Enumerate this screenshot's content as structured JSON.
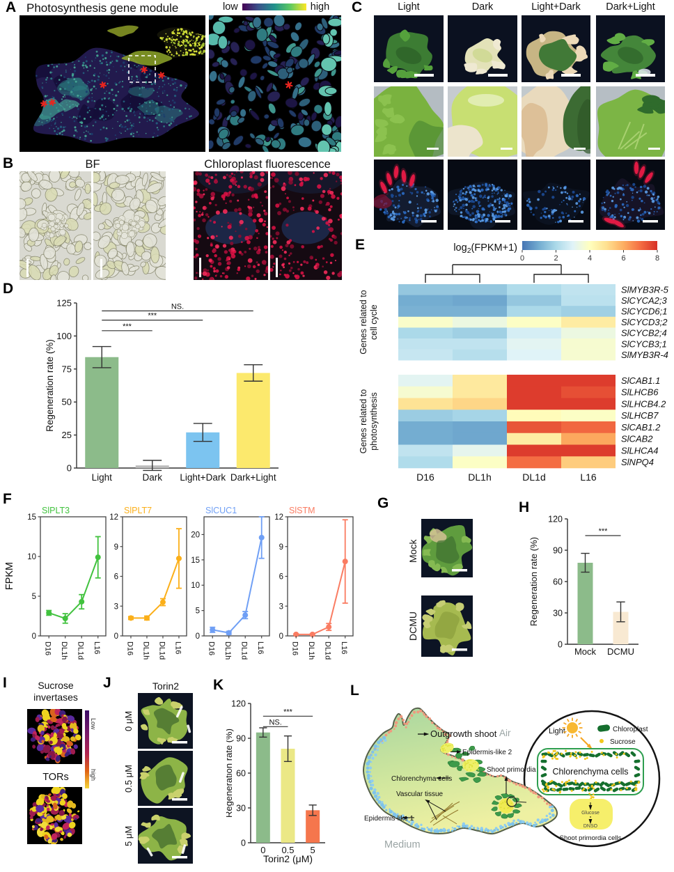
{
  "figure": {
    "panelA": {
      "letter": "A",
      "title": "Photosynthesis gene module",
      "colorbar_low": "low",
      "colorbar_high": "high"
    },
    "panelB": {
      "letter": "B",
      "bf_title": "BF",
      "fluor_title": "Chloroplast fluorescence"
    },
    "panelC": {
      "letter": "C",
      "columns": [
        "Light",
        "Dark",
        "Light+Dark",
        "Dark+Light"
      ]
    },
    "panelD": {
      "letter": "D"
    },
    "panelE": {
      "letter": "E"
    },
    "panelF": {
      "letter": "F",
      "ylabel": "FPKM"
    },
    "panelG": {
      "letter": "G",
      "rows": [
        "Mock",
        "DCMU"
      ]
    },
    "panelH": {
      "letter": "H"
    },
    "panelI": {
      "letter": "I",
      "title1": "Sucrose",
      "title2": "invertases",
      "title3": "TORs",
      "colorbar_low": "Low",
      "colorbar_high": "high"
    },
    "panelJ": {
      "letter": "J",
      "title": "Torin2",
      "rows": [
        "0 μM",
        "0.5 μM",
        "5 μM"
      ]
    },
    "panelK": {
      "letter": "K"
    },
    "panelL": {
      "letter": "L",
      "labels": {
        "outgrowth_shoot": "Outgrowth shoot",
        "air": "Air",
        "epidermis2": "Epidermis-like 2",
        "chlorenchyma": "Chlorenchyma cells",
        "vascular": "Vascular tissue",
        "epidermis1": "Epidermis-like 1",
        "shoot_primordia": "Shoot primordia",
        "medium": "Medium",
        "light": "Light",
        "chloroplast": "Chloroplast",
        "sucrose": "Sucrose",
        "cell_box": "Chlorenchyma cells",
        "glucose": "Glucose",
        "dnso": "DNSO",
        "caption": "Shoot primordia cells"
      }
    }
  },
  "chart_data": [
    {
      "id": "D",
      "type": "bar",
      "categories": [
        "Light",
        "Dark",
        "Light+Dark",
        "Dark+Light"
      ],
      "values": [
        84,
        2,
        27,
        72
      ],
      "errors": [
        8,
        3.8,
        6.8,
        6.2
      ],
      "colors": [
        "#8cbb8a",
        "#bdbdbd",
        "#7cc4f0",
        "#fce96d"
      ],
      "ylabel": "Regeneration rate (%)",
      "ylim": [
        0,
        125
      ],
      "yticks": [
        0,
        25,
        50,
        75,
        100,
        125
      ],
      "significance": [
        {
          "i": 0,
          "j": 1,
          "y": 104,
          "label": "***"
        },
        {
          "i": 0,
          "j": 2,
          "y": 112,
          "label": "***"
        },
        {
          "i": 0,
          "j": 3,
          "y": 119,
          "label": "NS."
        }
      ]
    },
    {
      "id": "E",
      "type": "heatmap",
      "title_pre": "log",
      "title_sub": "2",
      "title_post": "(FPKM+1)",
      "colorbar_ticks": [
        0,
        2,
        4,
        6,
        8
      ],
      "vmin": 0,
      "vmax": 8,
      "columns": [
        "D16",
        "DL1h",
        "DL1d",
        "L16"
      ],
      "row_groups": [
        {
          "label": [
            "Genes related to",
            "cell cycle"
          ],
          "rows": [
            {
              "gene": "SlMYB3R-5",
              "values": [
                1.6,
                1.6,
                2.1,
                2.4
              ]
            },
            {
              "gene": "SlCYCA2;3",
              "values": [
                1.0,
                0.9,
                1.6,
                2.3
              ]
            },
            {
              "gene": "SlCYCD6;1",
              "values": [
                1.1,
                1.1,
                2.0,
                1.8
              ]
            },
            {
              "gene": "SlCYCD3;2",
              "values": [
                3.8,
                3.4,
                3.9,
                4.6
              ]
            },
            {
              "gene": "SlCYCB2;4",
              "values": [
                2.0,
                1.8,
                2.8,
                3.4
              ]
            },
            {
              "gene": "SlCYCB3;1",
              "values": [
                2.4,
                2.4,
                3.1,
                3.7
              ]
            },
            {
              "gene": "SlMYB3R-4",
              "values": [
                2.5,
                2.2,
                3.0,
                3.7
              ]
            }
          ]
        },
        {
          "label": [
            "Genes related to",
            "photosynthesis"
          ],
          "rows": [
            {
              "gene": "SlCAB1.1",
              "values": [
                3.1,
                4.7,
                7.8,
                7.8
              ]
            },
            {
              "gene": "SlLHCB6",
              "values": [
                3.7,
                4.7,
                7.8,
                7.5
              ]
            },
            {
              "gene": "SlLHCB4.2",
              "values": [
                4.9,
                5.2,
                7.8,
                7.8
              ]
            },
            {
              "gene": "SlLHCB7",
              "values": [
                1.7,
                1.9,
                4.1,
                3.9
              ]
            },
            {
              "gene": "SlCAB1.2",
              "values": [
                1.0,
                0.9,
                7.4,
                7.1
              ]
            },
            {
              "gene": "SlCAB2",
              "values": [
                1.0,
                0.9,
                4.6,
                6.1
              ]
            },
            {
              "gene": "SlLHCA4",
              "values": [
                2.4,
                3.2,
                7.8,
                7.8
              ]
            },
            {
              "gene": "SlNPQ4",
              "values": [
                2.1,
                3.9,
                7.0,
                5.4
              ]
            }
          ]
        }
      ]
    },
    {
      "id": "F1",
      "type": "line",
      "title": "SlPLT3",
      "color": "#41c23e",
      "x": [
        "D16",
        "DL1h",
        "DL1d",
        "L16"
      ],
      "values": [
        2.9,
        2.2,
        4.3,
        9.9
      ],
      "errors": [
        0.3,
        0.6,
        0.9,
        2.6
      ],
      "ylim": [
        0,
        15
      ],
      "yticks": [
        0,
        5,
        10,
        15
      ]
    },
    {
      "id": "F2",
      "type": "line",
      "title": "SlPLT7",
      "color": "#fbaf19",
      "x": [
        "D16",
        "DL1h",
        "DL1d",
        "L16"
      ],
      "values": [
        1.8,
        1.8,
        3.4,
        7.8
      ],
      "errors": [
        0.15,
        0.2,
        0.35,
        3.0
      ],
      "ylim": [
        0,
        12
      ],
      "yticks": [
        0,
        3,
        6,
        9,
        12
      ]
    },
    {
      "id": "F3",
      "type": "line",
      "title": "SlCUC1",
      "color": "#6f9ff5",
      "x": [
        "D16",
        "DL1h",
        "DL1d",
        "L16"
      ],
      "values": [
        1.2,
        0.6,
        4.1,
        19.4
      ],
      "errors": [
        0.5,
        0.3,
        0.7,
        4.1
      ],
      "ylim": [
        0,
        23.5
      ],
      "yticks": [
        0,
        5,
        10,
        15,
        20
      ]
    },
    {
      "id": "F4",
      "type": "line",
      "title": "SlSTM",
      "color": "#fa7c62",
      "x": [
        "D16",
        "DL1h",
        "DL1d",
        "L16"
      ],
      "values": [
        0.15,
        0.15,
        0.9,
        7.5
      ],
      "errors": [
        0.05,
        0.05,
        0.35,
        4.2
      ],
      "ylim": [
        0,
        12
      ],
      "yticks": [
        0,
        3,
        6,
        9,
        12
      ]
    },
    {
      "id": "H",
      "type": "bar",
      "categories": [
        "Mock",
        "DCMU"
      ],
      "values": [
        78,
        31
      ],
      "errors": [
        9,
        9.5
      ],
      "colors": [
        "#8cbb8a",
        "#f8e9d2"
      ],
      "ylabel": "Regeneration rate (%)",
      "ylim": [
        0,
        120
      ],
      "yticks": [
        0,
        30,
        60,
        90,
        120
      ],
      "significance": [
        {
          "i": 0,
          "j": 1,
          "y": 104,
          "label": "***"
        }
      ]
    },
    {
      "id": "K",
      "type": "bar",
      "categories": [
        "0",
        "0.5",
        "5"
      ],
      "values": [
        95,
        81,
        28
      ],
      "errors": [
        4,
        11,
        4.5
      ],
      "colors": [
        "#8cbb8a",
        "#ebe886",
        "#f5764d"
      ],
      "ylabel": "Regeneration rate (%)",
      "xlabel": "Torin2 (μM)",
      "ylim": [
        0,
        120
      ],
      "yticks": [
        0,
        30,
        60,
        90,
        120
      ],
      "significance": [
        {
          "i": 0,
          "j": 1,
          "y": 100,
          "label": "NS."
        },
        {
          "i": 0,
          "j": 2,
          "y": 109,
          "label": "***"
        }
      ]
    }
  ]
}
